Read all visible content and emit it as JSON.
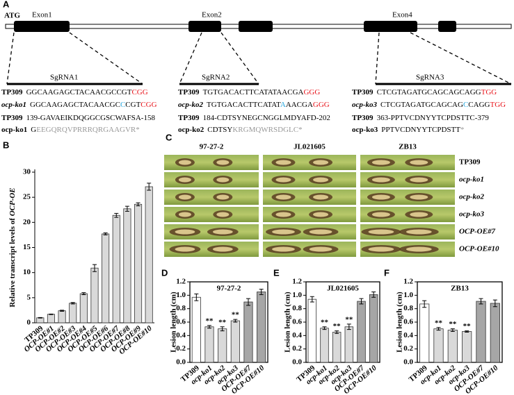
{
  "panel_a": {
    "label": "A",
    "start": "ATG",
    "exons": [
      "Exon1",
      "Exon2",
      "Exon4"
    ],
    "sgrnas": [
      "SgRNA1",
      "SgRNA2",
      "SgRNA3"
    ],
    "sequences": [
      [
        {
          "label": "TP309",
          "parts": [
            {
              "text": "GGCAAGAGCTACAACGCCGT"
            },
            {
              "text": "CGG",
              "color": "#e8141b"
            }
          ]
        },
        {
          "label": "ocp-ko1",
          "italic": true,
          "parts": [
            {
              "text": "GGCAAGAGCTACAACGC"
            },
            {
              "text": "C",
              "color": "#29a9e0"
            },
            {
              "text": "CGT"
            },
            {
              "text": "CGG",
              "color": "#e8141b"
            }
          ]
        },
        {
          "label": "TP309",
          "parts": [
            {
              "text": "139-GAVAEIKDQGGCGSCWAFSA-158"
            }
          ]
        },
        {
          "label": "ocp-ko1",
          "parts": [
            {
              "text": "G"
            },
            {
              "text": "EEGQRQVPRRRQRGAAGVR*",
              "color": "#999999"
            }
          ]
        }
      ],
      [
        {
          "label": "TP309",
          "parts": [
            {
              "text": "TGTGACACTTCATATAACGA"
            },
            {
              "text": "GGG",
              "color": "#e8141b"
            }
          ]
        },
        {
          "label": "ocp-ko2",
          "italic": true,
          "parts": [
            {
              "text": "TGTGACACTTCATAT"
            },
            {
              "text": "A",
              "color": "#29a9e0"
            },
            {
              "text": "AACGA"
            },
            {
              "text": "GGG",
              "color": "#e8141b"
            }
          ]
        },
        {
          "label": "TP309",
          "parts": [
            {
              "text": "184-CDTSYNEGCNGGLMDYAFD-202"
            }
          ]
        },
        {
          "label": "ocp-ko2",
          "parts": [
            {
              "text": "CDTSY"
            },
            {
              "text": "KRGMQWRSDGLC*",
              "color": "#999999"
            }
          ]
        }
      ],
      [
        {
          "label": "TP309",
          "parts": [
            {
              "text": "CTCGTAGATGCAGCAGCAGG"
            },
            {
              "text": "TGG",
              "color": "#e8141b"
            }
          ]
        },
        {
          "label": "ocp-ko3",
          "italic": true,
          "parts": [
            {
              "text": "CTCGTAGATGCAGCAG"
            },
            {
              "text": "C",
              "color": "#29a9e0"
            },
            {
              "text": "CAGG"
            },
            {
              "text": "TGG",
              "color": "#e8141b"
            }
          ]
        },
        {
          "label": "TP309",
          "parts": [
            {
              "text": "363-PPTVCDNYYTCPDSTTC-379"
            }
          ]
        },
        {
          "label": "ocp-ko3",
          "parts": [
            {
              "text": "PPTVCDNYYTCPDSTT"
            },
            {
              "text": "*",
              "color": "#999999"
            }
          ]
        }
      ]
    ]
  },
  "panel_c": {
    "label": "C",
    "columns": [
      "97-27-2",
      "JL021605",
      "ZB13"
    ],
    "rows": [
      "TP309",
      "ocp-ko1",
      "ocp-ko2",
      "ocp-ko3",
      "OCP-OE#7",
      "OCP-OE#10"
    ]
  },
  "chart_data": [
    {
      "type": "bar",
      "panel_label": "B",
      "ylabel": [
        "Relative transcript levels of ",
        "OCP-OE"
      ],
      "categories": [
        "TP309",
        "OCP-OE#1",
        "OCP-OE#2",
        "OCP-OE#3",
        "OCP-OE#4",
        "OCP-OE#5",
        "OCP-OE#6",
        "OCP-OE#7",
        "OCP-OE#8",
        "OCP-OE#9",
        "OCP-OE#10"
      ],
      "values": [
        1.0,
        1.7,
        2.4,
        3.9,
        5.8,
        10.9,
        17.7,
        21.4,
        22.7,
        23.6,
        27.1
      ],
      "errors": [
        0.05,
        0.05,
        0.1,
        0.15,
        0.2,
        0.7,
        0.2,
        0.4,
        0.5,
        0.3,
        0.7
      ],
      "color": "#d9d9d9",
      "ylim": [
        0,
        30
      ],
      "yticks": [
        0,
        5,
        10,
        15,
        20,
        25,
        30
      ]
    },
    {
      "type": "bar",
      "panel_label": "D",
      "title": "97-27-2",
      "ylabel": "Lesion length (cm)",
      "categories": [
        "TP309",
        "ocp-ko1",
        "ocp-ko2",
        "ocp-ko3",
        "OCP-OE#7",
        "OCP-OE#10"
      ],
      "values": [
        0.97,
        0.53,
        0.5,
        0.62,
        0.9,
        1.05
      ],
      "errors": [
        0.05,
        0.02,
        0.03,
        0.02,
        0.05,
        0.04
      ],
      "significance": [
        null,
        "**",
        "**",
        "**",
        null,
        null
      ],
      "colors": [
        "#ffffff",
        "#d9d9d9",
        "#d9d9d9",
        "#d9d9d9",
        "#a6a6a6",
        "#a6a6a6"
      ],
      "ylim": [
        0,
        1.2
      ],
      "yticks": [
        {
          "value": 0,
          "label": "0.0"
        },
        0.2,
        0.4,
        0.6,
        0.8,
        {
          "value": 1,
          "label": "1.0"
        },
        1.2
      ]
    },
    {
      "type": "bar",
      "panel_label": "E",
      "title": "JL021605",
      "ylabel": "Lesion length (cm)",
      "categories": [
        "TP309",
        "ocp-ko1",
        "ocp-ko2",
        "ocp-ko3",
        "OCP-OE#7",
        "OCP-OE#10"
      ],
      "values": [
        0.94,
        0.51,
        0.45,
        0.53,
        0.91,
        1.01
      ],
      "errors": [
        0.04,
        0.02,
        0.02,
        0.04,
        0.04,
        0.04
      ],
      "significance": [
        null,
        "**",
        "**",
        "**",
        null,
        null
      ],
      "colors": [
        "#ffffff",
        "#d9d9d9",
        "#d9d9d9",
        "#d9d9d9",
        "#a6a6a6",
        "#a6a6a6"
      ],
      "ylim": [
        0,
        1.2
      ],
      "yticks": [
        {
          "value": 0,
          "label": "0.0"
        },
        0.2,
        0.4,
        0.6,
        0.8,
        {
          "value": 1,
          "label": "1.0"
        },
        1.2
      ]
    },
    {
      "type": "bar",
      "panel_label": "F",
      "title": "ZB13",
      "ylabel": "Lesion length (cm)",
      "categories": [
        "TP309",
        "ocp-ko1",
        "ocp-ko2",
        "ocp-ko3",
        "OCP-OE#7",
        "OCP-OE#10"
      ],
      "values": [
        0.87,
        0.5,
        0.48,
        0.46,
        0.91,
        0.88
      ],
      "errors": [
        0.05,
        0.02,
        0.02,
        0.01,
        0.04,
        0.05
      ],
      "significance": [
        null,
        "**",
        "**",
        "**",
        null,
        null
      ],
      "colors": [
        "#ffffff",
        "#d9d9d9",
        "#d9d9d9",
        "#d9d9d9",
        "#a6a6a6",
        "#a6a6a6"
      ],
      "ylim": [
        0,
        1.2
      ],
      "yticks": [
        {
          "value": 0,
          "label": "0.0"
        },
        0.2,
        0.4,
        0.6,
        0.8,
        {
          "value": 1,
          "label": "1.0"
        },
        1.2
      ]
    }
  ]
}
